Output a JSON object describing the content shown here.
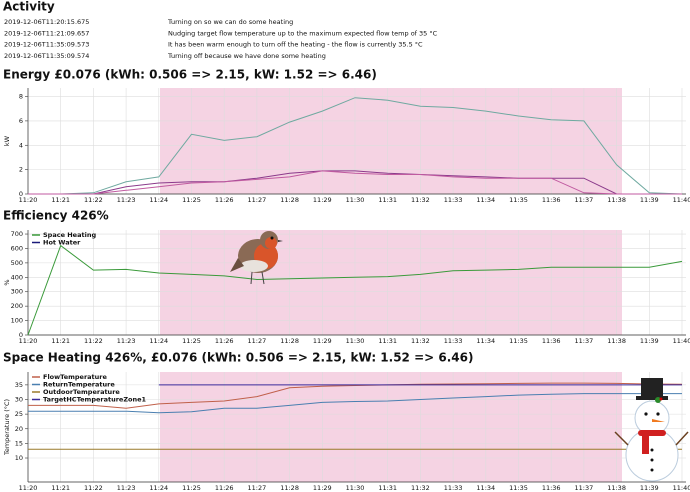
{
  "activity": {
    "title": "Activity",
    "rows": [
      [
        "2019-12-06T11:20:15.675",
        "Turning on so we can do some heating"
      ],
      [
        "2019-12-06T11:21:09.657",
        "Nudging target flow temperature up to the maximum expected flow temp of 35 °C"
      ],
      [
        "2019-12-06T11:35:09.573",
        "It has been warm enough to turn off the heating - the flow is currently 35.5 °C"
      ],
      [
        "2019-12-06T11:35:09.574",
        "Turning off because we have done some heating"
      ]
    ]
  },
  "chart_data": [
    {
      "type": "line",
      "title": "Energy £0.076 (kWh: 0.506 => 2.15, kW: 1.52 => 6.46)",
      "y_label": "kW",
      "categories": [
        "11:20",
        "11:21",
        "11:22",
        "11:23",
        "11:24",
        "11:25",
        "11:26",
        "11:27",
        "11:28",
        "11:29",
        "11:30",
        "11:31",
        "11:32",
        "11:33",
        "11:34",
        "11:35",
        "11:36",
        "11:37",
        "11:38",
        "11:39",
        "11:40"
      ],
      "series": [
        {
          "color": "#6fa9a0",
          "values": [
            0,
            0,
            0.1,
            1.0,
            1.4,
            4.9,
            4.4,
            4.7,
            5.9,
            6.8,
            7.9,
            7.7,
            7.2,
            7.1,
            6.8,
            6.4,
            6.1,
            6.0,
            2.4,
            0.1,
            0
          ]
        },
        {
          "color": "#8b3a8b",
          "values": [
            0,
            0,
            0,
            0.6,
            0.9,
            1.0,
            1.0,
            1.3,
            1.7,
            1.9,
            1.9,
            1.7,
            1.6,
            1.5,
            1.4,
            1.3,
            1.3,
            1.3,
            0,
            0,
            0
          ]
        },
        {
          "color": "#c05aa0",
          "values": [
            0,
            0,
            0,
            0.3,
            0.6,
            0.9,
            1.0,
            1.2,
            1.4,
            1.9,
            1.7,
            1.6,
            1.6,
            1.4,
            1.3,
            1.3,
            1.3,
            0.1,
            0,
            0,
            0
          ]
        }
      ],
      "ylim": [
        0,
        8.7
      ],
      "yticks": [
        0,
        2,
        4,
        6,
        8
      ],
      "grid": true
    },
    {
      "type": "line",
      "title": "Efficiency 426%",
      "y_label": "%",
      "legend": "upper left",
      "categories": [
        "11:20",
        "11:21",
        "11:22",
        "11:23",
        "11:24",
        "11:25",
        "11:26",
        "11:27",
        "11:28",
        "11:29",
        "11:30",
        "11:31",
        "11:32",
        "11:33",
        "11:34",
        "11:35",
        "11:36",
        "11:37",
        "11:38",
        "11:39",
        "11:40"
      ],
      "series": [
        {
          "name": "Space Heating",
          "color": "#3a9a3a",
          "values": [
            0,
            620,
            450,
            455,
            430,
            420,
            410,
            385,
            390,
            395,
            400,
            405,
            420,
            445,
            450,
            455,
            470,
            470,
            470,
            470,
            510
          ]
        },
        {
          "name": "Hot Water",
          "color": "#1a1a7a",
          "values": [
            null,
            null,
            null,
            null,
            null,
            null,
            null,
            null,
            null,
            null,
            null,
            null,
            null,
            null,
            null,
            null,
            null,
            null,
            null,
            null,
            null
          ]
        }
      ],
      "ylim": [
        0,
        728
      ],
      "yticks": [
        0,
        100,
        200,
        300,
        400,
        500,
        600,
        700
      ],
      "grid": true
    },
    {
      "type": "line",
      "title": "Space Heating 426%, £0.076 (kWh: 0.506 => 2.15, kW: 1.52 => 6.46)",
      "y_label": "Temperature (°C)",
      "legend": "upper left",
      "categories": [
        "11:20",
        "11:21",
        "11:22",
        "11:23",
        "11:24",
        "11:25",
        "11:26",
        "11:27",
        "11:28",
        "11:29",
        "11:30",
        "11:31",
        "11:32",
        "11:33",
        "11:34",
        "11:35",
        "11:36",
        "11:37",
        "11:38",
        "11:39",
        "11:40"
      ],
      "series": [
        {
          "name": "FlowTemperature",
          "color": "#c0604a",
          "values": [
            28,
            28,
            28,
            27,
            28.5,
            29,
            29.5,
            31,
            34,
            34.5,
            34.8,
            35,
            35.2,
            35.3,
            35.4,
            35.5,
            35.6,
            35.6,
            35.5,
            35.3,
            35.2
          ]
        },
        {
          "name": "ReturnTemperature",
          "color": "#4a7fb0",
          "values": [
            26,
            26,
            26,
            26,
            25.5,
            25.8,
            27,
            27,
            28,
            29,
            29.3,
            29.5,
            30,
            30.5,
            31,
            31.5,
            31.8,
            32,
            32,
            32,
            32
          ]
        },
        {
          "name": "OutdoorTemperature",
          "color": "#9a7a2a",
          "values": [
            13,
            13,
            13,
            13,
            13,
            13,
            13,
            13,
            13,
            13,
            13,
            13,
            13,
            13,
            13,
            13,
            13,
            13,
            13,
            13,
            13
          ]
        },
        {
          "name": "TargetHCTemperatureZone1",
          "color": "#3a2a9a",
          "values": [
            null,
            null,
            null,
            null,
            35,
            35,
            35,
            35,
            35,
            35,
            35,
            35,
            35,
            35,
            35,
            35,
            35,
            35,
            35,
            35,
            35
          ]
        }
      ],
      "ylim": [
        1.8,
        39.4
      ],
      "yticks": [
        10,
        15,
        20,
        25,
        30,
        35
      ],
      "grid": true
    }
  ]
}
